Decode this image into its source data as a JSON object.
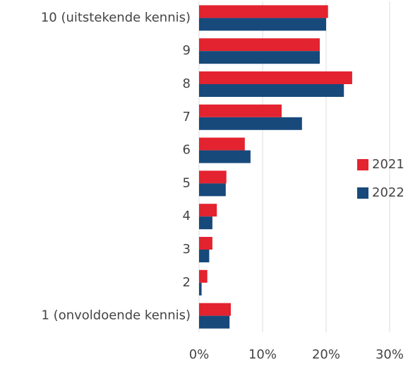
{
  "chart_data": {
    "type": "hbar",
    "categories": [
      "10 (uitstekende kennis)",
      "9",
      "8",
      "7",
      "6",
      "5",
      "4",
      "3",
      "2",
      "1 (onvoldoende kennis)"
    ],
    "series": [
      {
        "name": "2021",
        "color": "#e3232f",
        "values": [
          20.3,
          19.0,
          24.1,
          13.0,
          7.2,
          4.3,
          2.8,
          2.1,
          1.3,
          5.0
        ]
      },
      {
        "name": "2022",
        "color": "#17497b",
        "values": [
          20.0,
          19.0,
          22.8,
          16.2,
          8.1,
          4.2,
          2.1,
          1.6,
          0.4,
          4.8
        ]
      }
    ],
    "xlim": [
      0,
      30
    ],
    "xticks": [
      {
        "value": 0,
        "label": "0%"
      },
      {
        "value": 10,
        "label": "10%"
      },
      {
        "value": 20,
        "label": "20%"
      },
      {
        "value": 30,
        "label": "30%"
      }
    ],
    "grid": true,
    "legend": "right"
  }
}
